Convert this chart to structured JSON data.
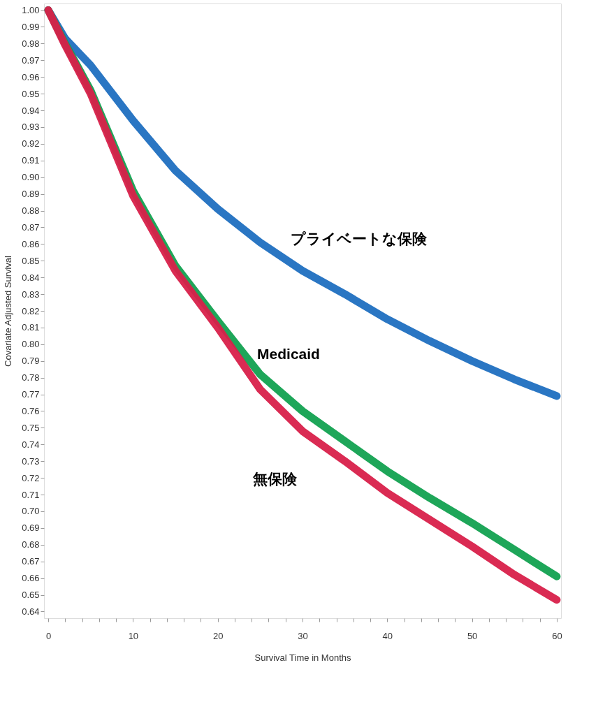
{
  "chart_data": {
    "type": "line",
    "xlabel": "Survival Time in Months",
    "ylabel": "Covariate Adjusted Survival",
    "x": [
      0,
      2,
      5,
      10,
      15,
      20,
      25,
      30,
      35,
      40,
      45,
      50,
      55,
      60
    ],
    "series": [
      {
        "name": "プライベートな保険",
        "color": "#1f6fc0",
        "values": [
          1.0,
          0.983,
          0.967,
          0.934,
          0.904,
          0.881,
          0.861,
          0.844,
          0.83,
          0.815,
          0.802,
          0.79,
          0.779,
          0.769
        ]
      },
      {
        "name": "Medicaid",
        "color": "#12a150",
        "values": [
          1.0,
          0.98,
          0.952,
          0.892,
          0.847,
          0.814,
          0.782,
          0.76,
          0.742,
          0.724,
          0.708,
          0.693,
          0.677,
          0.661
        ]
      },
      {
        "name": "無保険",
        "color": "#d8204a",
        "values": [
          1.0,
          0.979,
          0.95,
          0.889,
          0.844,
          0.81,
          0.773,
          0.748,
          0.73,
          0.711,
          0.695,
          0.679,
          0.662,
          0.647
        ]
      }
    ],
    "xlim": [
      -0.5,
      60.5
    ],
    "xticks": [
      0,
      {
        "value": 2,
        "label": null
      },
      {
        "value": 4,
        "label": null
      },
      {
        "value": 6,
        "label": null
      },
      {
        "value": 8,
        "label": null
      },
      10,
      {
        "value": 12,
        "label": null
      },
      {
        "value": 14,
        "label": null
      },
      {
        "value": 16,
        "label": null
      },
      {
        "value": 18,
        "label": null
      },
      20,
      {
        "value": 22,
        "label": null
      },
      {
        "value": 24,
        "label": null
      },
      {
        "value": 26,
        "label": null
      },
      {
        "value": 28,
        "label": null
      },
      30,
      {
        "value": 32,
        "label": null
      },
      {
        "value": 34,
        "label": null
      },
      {
        "value": 36,
        "label": null
      },
      {
        "value": 38,
        "label": null
      },
      40,
      {
        "value": 42,
        "label": null
      },
      {
        "value": 44,
        "label": null
      },
      {
        "value": 46,
        "label": null
      },
      {
        "value": 48,
        "label": null
      },
      50,
      {
        "value": 52,
        "label": null
      },
      {
        "value": 54,
        "label": null
      },
      {
        "value": 56,
        "label": null
      },
      {
        "value": 58,
        "label": null
      },
      60
    ],
    "ylim": [
      0.636,
      1.004
    ],
    "yticks": [
      {
        "value": 0.64,
        "label": "0.64"
      },
      0.65,
      0.66,
      0.67,
      0.68,
      0.69,
      {
        "value": 0.7,
        "label": "0.70"
      },
      0.71,
      0.72,
      0.73,
      0.74,
      0.75,
      0.76,
      0.77,
      0.78,
      0.79,
      {
        "value": 0.8,
        "label": "0.80"
      },
      0.81,
      0.82,
      0.83,
      0.84,
      0.85,
      0.86,
      0.87,
      0.88,
      0.89,
      {
        "value": 0.9,
        "label": "0.90"
      },
      0.91,
      0.92,
      0.93,
      0.94,
      0.95,
      0.96,
      0.97,
      0.98,
      0.99,
      {
        "value": 1.0,
        "label": "1.00"
      }
    ],
    "grid": false,
    "legend": false,
    "marker": "none",
    "line_style": "solid"
  }
}
